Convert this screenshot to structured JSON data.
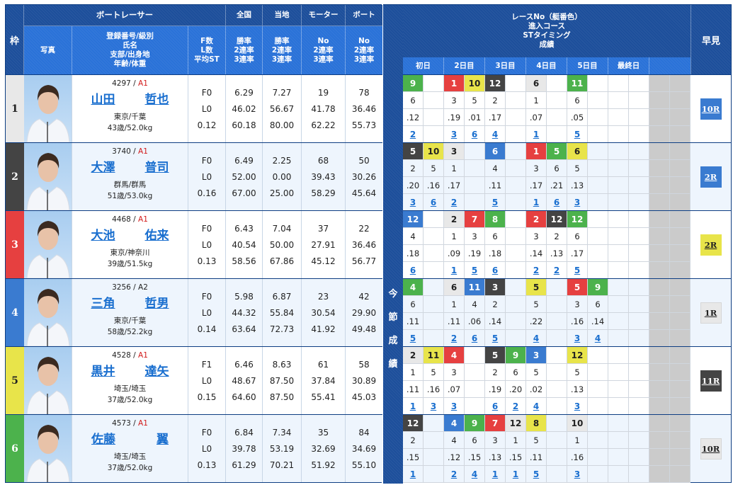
{
  "colors": {
    "header_dark": "#1d4f9b",
    "header_light": "#2a72d8",
    "frame": [
      "#e8e8e8",
      "#444444",
      "#e64040",
      "#3a7bd0",
      "#e8e44a",
      "#4cb24c"
    ],
    "frame_text": [
      "#222222",
      "#ffffff",
      "#ffffff",
      "#ffffff",
      "#222222",
      "#ffffff"
    ],
    "link": "#1a6fcf",
    "class_red": "#d21a1a",
    "boat": {
      "1": {
        "bg": "#e8e8e8",
        "fg": "#222222"
      },
      "2": {
        "bg": "#444444",
        "fg": "#ffffff"
      },
      "3": {
        "bg": "#e64040",
        "fg": "#ffffff"
      },
      "4": {
        "bg": "#3a7bd0",
        "fg": "#ffffff"
      },
      "5": {
        "bg": "#e8e44a",
        "fg": "#222222"
      },
      "6": {
        "bg": "#4cb24c",
        "fg": "#ffffff"
      }
    }
  },
  "header": {
    "waku": "枠",
    "racer_group": "ボートレーサー",
    "national": "全国",
    "local": "当地",
    "motor": "モーター",
    "boat": "ボート",
    "photo": "写真",
    "profile": "登録番号/級別\n氏名\n支部/出身地\n年齢/体重",
    "fl": "F数\nL数\n平均ST",
    "national_sub": "勝率\n2連率\n3連率",
    "local_sub": "勝率\n2連率\n3連率",
    "motor_sub": "No\n2連率\n3連率",
    "boat_sub": "No\n2連率\n3連率",
    "race_info": "レースNo（艇番色）\n進入コース\nSTタイミング\n成績",
    "days": [
      "初日",
      "2日目",
      "3日目",
      "4日目",
      "5日目",
      "最終日",
      ""
    ],
    "early": "早見",
    "season_label": [
      "今",
      "節",
      "成",
      "績"
    ]
  },
  "racers": [
    {
      "frame": "1",
      "reg": "4297",
      "class": "A1",
      "class_red": true,
      "last": "山田",
      "first": "哲也",
      "area": "東京/千葉",
      "age_weight": "43歳/52.0kg",
      "f": "F0",
      "l": "L0",
      "st": "0.12",
      "nat": [
        "6.29",
        "46.02",
        "60.18"
      ],
      "loc": [
        "7.27",
        "56.67",
        "80.00"
      ],
      "motor": [
        "19",
        "41.78",
        "62.22"
      ],
      "boat": [
        "78",
        "36.46",
        "55.73"
      ],
      "races": [
        {
          "r": "9",
          "b": "6",
          "c": "6",
          "st": ".12",
          "res": "2"
        },
        null,
        {
          "r": "1",
          "b": "3",
          "c": "3",
          "st": ".19",
          "res": "3"
        },
        {
          "r": "10",
          "b": "5",
          "c": "5",
          "st": ".01",
          "res": "6"
        },
        {
          "r": "12",
          "b": "2",
          "c": "2",
          "st": ".17",
          "res": "4"
        },
        null,
        {
          "r": "6",
          "b": "1",
          "c": "1",
          "st": ".07",
          "res": "1"
        },
        null,
        {
          "r": "11",
          "b": "6",
          "c": "6",
          "st": ".05",
          "res": "5"
        },
        null,
        null,
        null,
        null,
        null
      ],
      "early": "10R",
      "early_bg": "#3a7bd0",
      "early_fg": "#ffffff"
    },
    {
      "frame": "2",
      "reg": "3740",
      "class": "A1",
      "class_red": true,
      "last": "大澤",
      "first": "普司",
      "area": "群馬/群馬",
      "age_weight": "51歳/53.0kg",
      "f": "F0",
      "l": "L0",
      "st": "0.16",
      "nat": [
        "6.49",
        "52.00",
        "67.00"
      ],
      "loc": [
        "2.25",
        "0.00",
        "25.00"
      ],
      "motor": [
        "68",
        "39.43",
        "58.29"
      ],
      "boat": [
        "50",
        "30.26",
        "45.64"
      ],
      "races": [
        {
          "r": "5",
          "b": "2",
          "c": "2",
          "st": ".20",
          "res": "3"
        },
        {
          "r": "10",
          "b": "5",
          "c": "5",
          "st": ".16",
          "res": "6"
        },
        {
          "r": "3",
          "b": "1",
          "c": "1",
          "st": ".17",
          "res": "2"
        },
        null,
        {
          "r": "6",
          "b": "4",
          "c": "4",
          "st": ".11",
          "res": "5"
        },
        null,
        {
          "r": "1",
          "b": "3",
          "c": "3",
          "st": ".17",
          "res": "1"
        },
        {
          "r": "5",
          "b": "6",
          "c": "6",
          "st": ".21",
          "res": "6"
        },
        {
          "r": "6",
          "b": "5",
          "c": "5",
          "st": ".13",
          "res": "3"
        },
        null,
        null,
        null,
        null,
        null
      ],
      "early": "2R",
      "early_bg": "#3a7bd0",
      "early_fg": "#ffffff"
    },
    {
      "frame": "3",
      "reg": "4468",
      "class": "A1",
      "class_red": true,
      "last": "大池",
      "first": "佑来",
      "area": "東京/神奈川",
      "age_weight": "39歳/51.5kg",
      "f": "F0",
      "l": "L0",
      "st": "0.13",
      "nat": [
        "6.43",
        "40.54",
        "58.56"
      ],
      "loc": [
        "7.04",
        "50.00",
        "67.86"
      ],
      "motor": [
        "37",
        "27.91",
        "45.12"
      ],
      "boat": [
        "22",
        "36.46",
        "56.77"
      ],
      "races": [
        {
          "r": "12",
          "b": "4",
          "c": "4",
          "st": ".18",
          "res": "6"
        },
        null,
        {
          "r": "2",
          "b": "1",
          "c": "1",
          "st": ".09",
          "res": "1"
        },
        {
          "r": "7",
          "b": "3",
          "c": "3",
          "st": ".19",
          "res": "5"
        },
        {
          "r": "8",
          "b": "6",
          "c": "6",
          "st": ".18",
          "res": "6"
        },
        null,
        {
          "r": "2",
          "b": "3",
          "c": "3",
          "st": ".14",
          "res": "2"
        },
        {
          "r": "12",
          "b": "2",
          "c": "2",
          "st": ".13",
          "res": "2"
        },
        {
          "r": "12",
          "b": "6",
          "c": "6",
          "st": ".17",
          "res": "5"
        },
        null,
        null,
        null,
        null,
        null
      ],
      "early": "2R",
      "early_bg": "#e8e44a",
      "early_fg": "#222222"
    },
    {
      "frame": "4",
      "reg": "3256",
      "class": "A2",
      "class_red": false,
      "last": "三角",
      "first": "哲男",
      "area": "東京/千葉",
      "age_weight": "58歳/52.2kg",
      "f": "F0",
      "l": "L0",
      "st": "0.14",
      "nat": [
        "5.98",
        "44.32",
        "63.64"
      ],
      "loc": [
        "6.87",
        "55.84",
        "72.73"
      ],
      "motor": [
        "23",
        "30.54",
        "41.92"
      ],
      "boat": [
        "42",
        "29.90",
        "49.48"
      ],
      "races": [
        {
          "r": "4",
          "b": "6",
          "c": "6",
          "st": ".11",
          "res": "5"
        },
        null,
        {
          "r": "6",
          "b": "1",
          "c": "1",
          "st": ".11",
          "res": "2"
        },
        {
          "r": "11",
          "b": "4",
          "c": "4",
          "st": ".06",
          "res": "6"
        },
        {
          "r": "3",
          "b": "2",
          "c": "2",
          "st": ".14",
          "res": "5"
        },
        null,
        {
          "r": "5",
          "b": "5",
          "c": "5",
          "st": ".22",
          "res": "4"
        },
        null,
        {
          "r": "5",
          "b": "3",
          "c": "3",
          "st": ".16",
          "res": "3"
        },
        {
          "r": "9",
          "b": "6",
          "c": "6",
          "st": ".14",
          "res": "4"
        },
        null,
        null,
        null,
        null
      ],
      "early": "1R",
      "early_bg": "#e8e8e8",
      "early_fg": "#222222"
    },
    {
      "frame": "5",
      "reg": "4528",
      "class": "A1",
      "class_red": true,
      "last": "黒井",
      "first": "達矢",
      "area": "埼玉/埼玉",
      "age_weight": "37歳/52.0kg",
      "f": "F1",
      "l": "L0",
      "st": "0.15",
      "nat": [
        "6.46",
        "48.67",
        "64.60"
      ],
      "loc": [
        "8.63",
        "87.50",
        "87.50"
      ],
      "motor": [
        "61",
        "37.84",
        "55.41"
      ],
      "boat": [
        "58",
        "30.89",
        "45.03"
      ],
      "races": [
        {
          "r": "2",
          "b": "1",
          "c": "1",
          "st": ".11",
          "res": "1"
        },
        {
          "r": "11",
          "b": "5",
          "c": "5",
          "st": ".16",
          "res": "3"
        },
        {
          "r": "4",
          "b": "3",
          "c": "3",
          "st": ".07",
          "res": "3"
        },
        null,
        {
          "r": "5",
          "b": "2",
          "c": "2",
          "st": ".19",
          "res": "6"
        },
        {
          "r": "9",
          "b": "6",
          "c": "6",
          "st": ".20",
          "res": "2"
        },
        {
          "r": "3",
          "b": "4",
          "c": "5",
          "st": ".02",
          "res": "4"
        },
        null,
        {
          "r": "12",
          "b": "5",
          "c": "5",
          "st": ".13",
          "res": "3"
        },
        null,
        null,
        null,
        null,
        null
      ],
      "early": "11R",
      "early_bg": "#444444",
      "early_fg": "#ffffff"
    },
    {
      "frame": "6",
      "reg": "4573",
      "class": "A1",
      "class_red": true,
      "last": "佐藤",
      "first": "翼",
      "area": "埼玉/埼玉",
      "age_weight": "37歳/52.0kg",
      "f": "F0",
      "l": "L0",
      "st": "0.13",
      "nat": [
        "6.84",
        "39.78",
        "61.29"
      ],
      "loc": [
        "7.34",
        "53.19",
        "70.21"
      ],
      "motor": [
        "35",
        "32.69",
        "51.92"
      ],
      "boat": [
        "84",
        "34.69",
        "55.10"
      ],
      "races": [
        {
          "r": "12",
          "b": "2",
          "c": "2",
          "st": ".15",
          "res": "1"
        },
        null,
        {
          "r": "4",
          "b": "4",
          "c": "4",
          "st": ".12",
          "res": "2"
        },
        {
          "r": "9",
          "b": "6",
          "c": "6",
          "st": ".15",
          "res": "4"
        },
        {
          "r": "7",
          "b": "3",
          "c": "3",
          "st": ".13",
          "res": "1"
        },
        {
          "r": "12",
          "b": "1",
          "c": "1",
          "st": ".15",
          "res": "1"
        },
        {
          "r": "8",
          "b": "5",
          "c": "5",
          "st": ".11",
          "res": "5"
        },
        null,
        {
          "r": "10",
          "b": "1",
          "c": "1",
          "st": ".16",
          "res": "3"
        },
        null,
        null,
        null,
        null,
        null
      ],
      "early": "10R",
      "early_bg": "#e8e8e8",
      "early_fg": "#222222"
    }
  ]
}
